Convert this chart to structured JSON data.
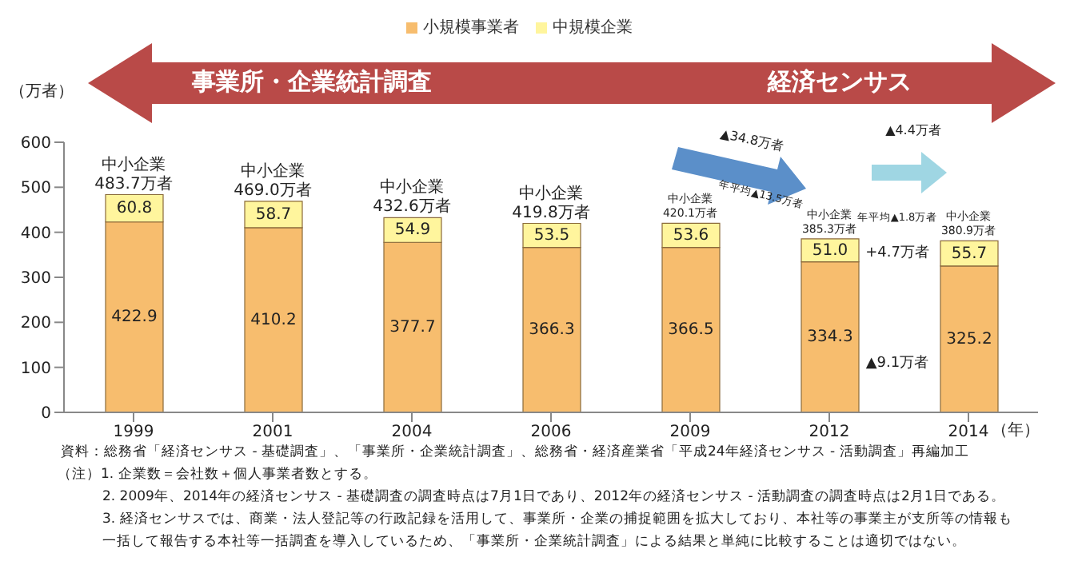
{
  "chart_data": {
    "type": "bar",
    "stacked": true,
    "legend": "top",
    "grid": false,
    "ylabel": "（万者）",
    "xlabel": "（年）",
    "categories": [
      "1999",
      "2001",
      "2004",
      "2006",
      "2009",
      "2012",
      "2014"
    ],
    "ylim": [
      0,
      600
    ],
    "yticks": [
      0,
      100,
      200,
      300,
      400,
      500,
      600
    ],
    "series": [
      {
        "name": "小規模事業者",
        "color": "#f7bd6e",
        "values": [
          422.9,
          410.2,
          377.7,
          366.3,
          366.5,
          334.3,
          325.2
        ],
        "value_labels": [
          "422.9",
          "410.2",
          "377.7",
          "366.3",
          "366.5",
          "334.3",
          "325.2"
        ]
      },
      {
        "name": "中規模企業",
        "color": "#fff59d",
        "values": [
          60.8,
          58.7,
          54.9,
          53.5,
          53.6,
          51.0,
          55.7
        ],
        "value_labels": [
          "60.8",
          "58.7",
          "54.9",
          "53.5",
          "53.6",
          "51.0",
          "55.7"
        ]
      }
    ],
    "annotations": [
      "事業所・企業統計調査",
      "経済センサス",
      "▲34.8万者",
      "年平均▲13.5万者",
      "▲4.4万者",
      "年平均▲1.8万者",
      "+4.7万者",
      "▲9.1万者",
      {
        "text": "中小企業\n483.7万者",
        "x": "1999",
        "y": 483.7
      },
      {
        "text": "中小企業\n469.0万者",
        "x": "2001",
        "y": 469.0
      },
      {
        "text": "中小企業\n432.6万者",
        "x": "2004",
        "y": 432.6
      },
      {
        "text": "中小企業\n419.8万者",
        "x": "2006",
        "y": 419.8
      },
      {
        "text": "中小企業\n420.1万者",
        "x": "2009",
        "y": 420.1
      },
      {
        "text": "中小企業\n385.3万者",
        "x": "2012",
        "y": 385.3
      },
      {
        "text": "中小企業\n380.9万者",
        "x": "2014",
        "y": 380.9
      },
      "資料：総務省「経済センサス - 基礎調査」、「事業所・企業統計調査」、総務省・経済産業省「平成24年経済センサス - 活動調査」再編加工",
      "（注）1. 企業数＝会社数＋個人事業者数とする。",
      "2. 2009年、2014年の経済センサス - 基礎調査の調査時点は7月1日であり、2012年の経済センサス - 活動調査の調査時点は2月1日である。",
      "3. 経済センサスでは、商業・法人登記等の行政記録を活用して、事業所・企業の捕捉範囲を拡大しており、本社等の事業主が支所等の情報も",
      "一括して報告する本社等一括調査を導入しているため、「事業所・企業統計調査」による結果と単純に比較することは適切ではない。"
    ]
  }
}
